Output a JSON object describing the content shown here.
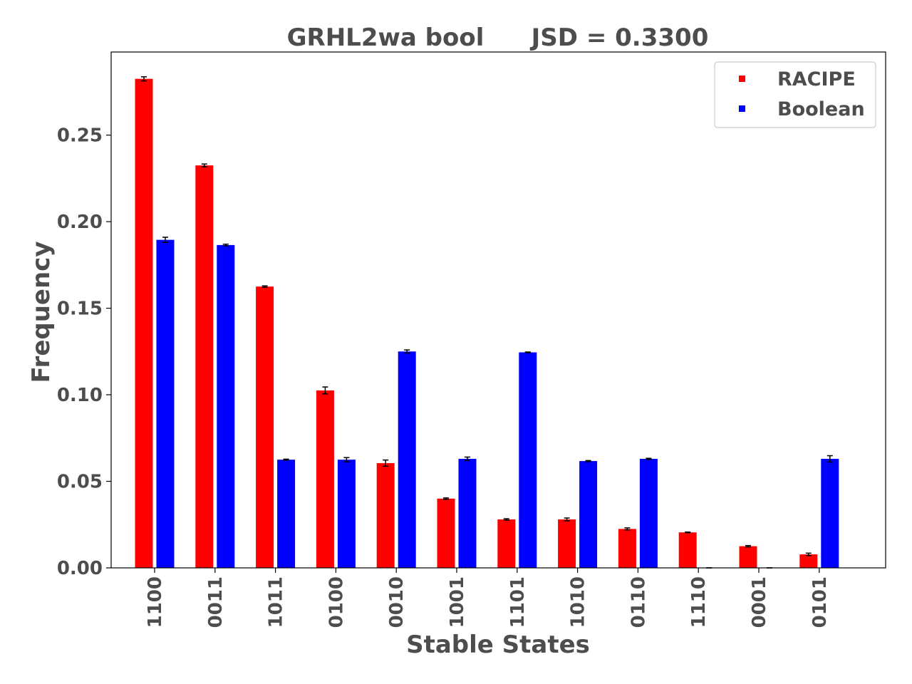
{
  "chart_data": {
    "type": "bar",
    "title_left": "GRHL2wa bool",
    "title_right": "JSD = 0.3300",
    "xlabel": "Stable States",
    "ylabel": "Frequency",
    "ylim": [
      0,
      0.298
    ],
    "yticks": [
      "0.00",
      "0.05",
      "0.10",
      "0.15",
      "0.20",
      "0.25"
    ],
    "ytick_values": [
      0,
      0.05,
      0.1,
      0.15,
      0.2,
      0.25
    ],
    "categories": [
      "1100",
      "0011",
      "1011",
      "0100",
      "0010",
      "1001",
      "1101",
      "1010",
      "0110",
      "1110",
      "0001",
      "0101"
    ],
    "legend_position": "top-right",
    "grid": false,
    "series": [
      {
        "name": "RACIPE",
        "color": "#ff0000",
        "values": [
          0.2825,
          0.2325,
          0.1625,
          0.1025,
          0.0605,
          0.04,
          0.028,
          0.028,
          0.0225,
          0.0205,
          0.0125,
          0.0078
        ],
        "errors": [
          0.0012,
          0.0008,
          0.0004,
          0.002,
          0.0018,
          0.0004,
          0.0004,
          0.0008,
          0.0006,
          0.0002,
          0.0004,
          0.0007
        ]
      },
      {
        "name": "Boolean",
        "color": "#0000ff",
        "values": [
          0.1895,
          0.1865,
          0.0625,
          0.0625,
          0.125,
          0.063,
          0.1245,
          0.0617,
          0.063,
          0.0,
          0.0,
          0.063
        ],
        "errors": [
          0.0015,
          0.0005,
          0.0003,
          0.0012,
          0.0009,
          0.001,
          0.0002,
          0.0003,
          0.0003,
          0.0,
          0.0,
          0.0018
        ]
      }
    ]
  }
}
